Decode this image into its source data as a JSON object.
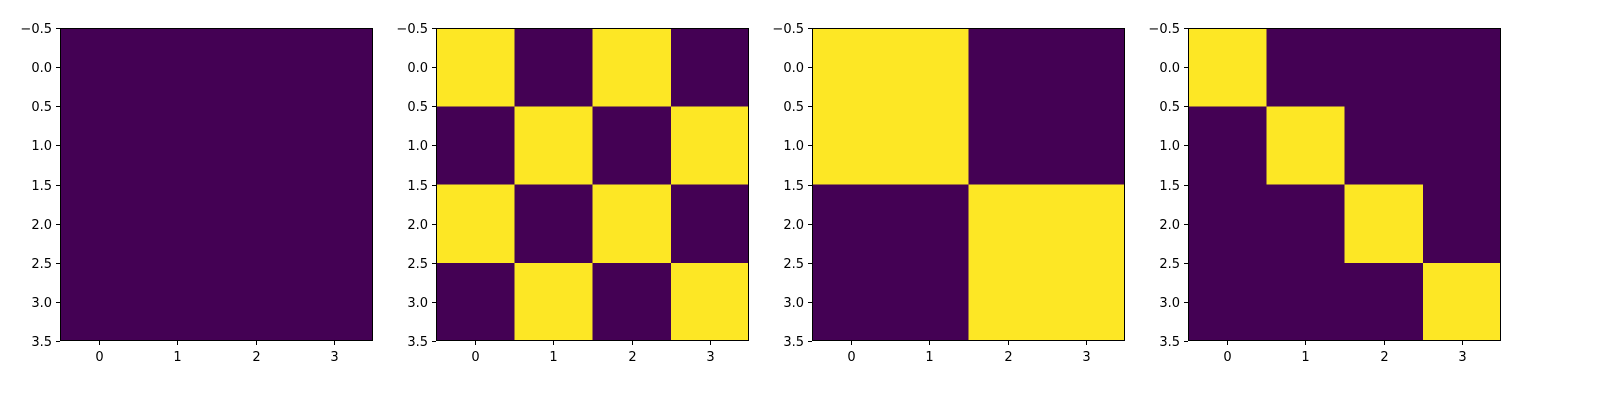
{
  "chart_data": [
    {
      "type": "heatmap",
      "title": "",
      "xlabel": "",
      "ylabel": "",
      "x_ticks": [
        "0",
        "1",
        "2",
        "3"
      ],
      "y_ticks": [
        "−0.5",
        "0.0",
        "0.5",
        "1.0",
        "1.5",
        "2.0",
        "2.5",
        "3.0",
        "3.5"
      ],
      "xlim": [
        -0.5,
        3.5
      ],
      "ylim": [
        3.5,
        -0.5
      ],
      "grid": false,
      "colormap": {
        "0": "#440154",
        "1": "#fde725"
      },
      "matrix": [
        [
          0,
          0,
          0,
          0
        ],
        [
          0,
          0,
          0,
          0
        ],
        [
          0,
          0,
          0,
          0
        ],
        [
          0,
          0,
          0,
          0
        ]
      ]
    },
    {
      "type": "heatmap",
      "title": "",
      "xlabel": "",
      "ylabel": "",
      "x_ticks": [
        "0",
        "1",
        "2",
        "3"
      ],
      "y_ticks": [
        "−0.5",
        "0.0",
        "0.5",
        "1.0",
        "1.5",
        "2.0",
        "2.5",
        "3.0",
        "3.5"
      ],
      "xlim": [
        -0.5,
        3.5
      ],
      "ylim": [
        3.5,
        -0.5
      ],
      "grid": false,
      "colormap": {
        "0": "#440154",
        "1": "#fde725"
      },
      "matrix": [
        [
          1,
          0,
          1,
          0
        ],
        [
          0,
          1,
          0,
          1
        ],
        [
          1,
          0,
          1,
          0
        ],
        [
          0,
          1,
          0,
          1
        ]
      ]
    },
    {
      "type": "heatmap",
      "title": "",
      "xlabel": "",
      "ylabel": "",
      "x_ticks": [
        "0",
        "1",
        "2",
        "3"
      ],
      "y_ticks": [
        "−0.5",
        "0.0",
        "0.5",
        "1.0",
        "1.5",
        "2.0",
        "2.5",
        "3.0",
        "3.5"
      ],
      "xlim": [
        -0.5,
        3.5
      ],
      "ylim": [
        3.5,
        -0.5
      ],
      "grid": false,
      "colormap": {
        "0": "#440154",
        "1": "#fde725"
      },
      "matrix": [
        [
          1,
          1,
          0,
          0
        ],
        [
          1,
          1,
          0,
          0
        ],
        [
          0,
          0,
          1,
          1
        ],
        [
          0,
          0,
          1,
          1
        ]
      ]
    },
    {
      "type": "heatmap",
      "title": "",
      "xlabel": "",
      "ylabel": "",
      "x_ticks": [
        "0",
        "1",
        "2",
        "3"
      ],
      "y_ticks": [
        "−0.5",
        "0.0",
        "0.5",
        "1.0",
        "1.5",
        "2.0",
        "2.5",
        "3.0",
        "3.5"
      ],
      "xlim": [
        -0.5,
        3.5
      ],
      "ylim": [
        3.5,
        -0.5
      ],
      "grid": false,
      "colormap": {
        "0": "#440154",
        "1": "#fde725"
      },
      "matrix": [
        [
          1,
          0,
          0,
          0
        ],
        [
          0,
          1,
          0,
          0
        ],
        [
          0,
          0,
          1,
          0
        ],
        [
          0,
          0,
          0,
          1
        ]
      ]
    }
  ]
}
